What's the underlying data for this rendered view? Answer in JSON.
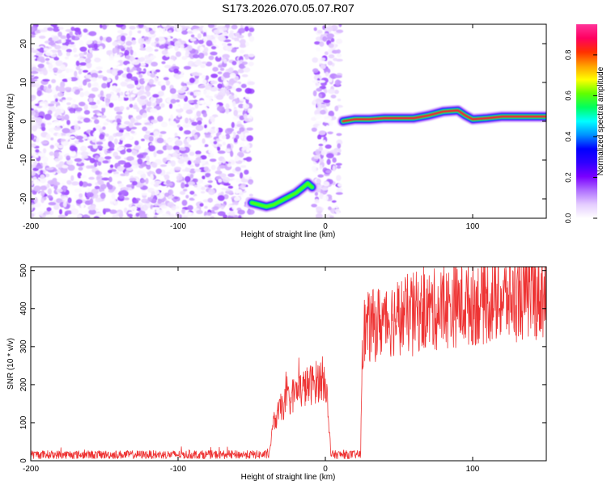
{
  "figure": {
    "title": "S173.2026.070.05.07.R07"
  },
  "chart_data": [
    {
      "type": "heatmap",
      "name": "spectrogram",
      "title": "S173.2026.070.05.07.R07",
      "xlabel": "Height of straight line (km)",
      "ylabel": "Frequency (Hz)",
      "xlim": [
        -200,
        150
      ],
      "ylim": [
        -25,
        25
      ],
      "xticks": [
        -200,
        -100,
        0,
        100
      ],
      "yticks": [
        -20,
        -10,
        0,
        10,
        20
      ],
      "xtick_labels": [
        "-200",
        "-100",
        "0",
        "100"
      ],
      "ytick_labels": [
        "-20",
        "-10",
        "0",
        "10",
        "20"
      ],
      "colorbar": {
        "label": "Normalized spectral amplitude",
        "range": [
          0.0,
          0.95
        ],
        "ticks": [
          0.0,
          0.2,
          0.4,
          0.6,
          0.8
        ],
        "tick_labels": [
          "0.0",
          "0.2",
          "0.4",
          "0.6",
          "0.8"
        ],
        "colors": [
          "#ffffff",
          "#e4ccff",
          "#b070ff",
          "#7a00ff",
          "#3000ff",
          "#0000ff",
          "#0090ff",
          "#00ffff",
          "#00ff60",
          "#60ff00",
          "#ffff00",
          "#ffa000",
          "#ff3000",
          "#ff0060",
          "#ff3399"
        ]
      },
      "noise_regions": [
        {
          "x_start": -200,
          "x_end": -50,
          "y_start": -25,
          "y_end": 25,
          "level": 0.1
        },
        {
          "x_start": -8,
          "x_end": 10,
          "y_start": -25,
          "y_end": 25,
          "level": 0.1
        }
      ],
      "ridge_segments": [
        {
          "x": [
            -50,
            -45,
            -40,
            -35,
            -30,
            -25,
            -20,
            -15,
            -12,
            -9
          ],
          "y": [
            -21,
            -21.5,
            -22,
            -21.5,
            -20.5,
            -19.5,
            -18.5,
            -17,
            -16,
            -17
          ],
          "level": 0.6
        },
        {
          "x": [
            12,
            20,
            30,
            40,
            50,
            60,
            70,
            80,
            90,
            95,
            100,
            110,
            120,
            130,
            140,
            150
          ],
          "y": [
            0,
            0.5,
            0.5,
            0.8,
            0.8,
            0.8,
            1.5,
            2.5,
            2.8,
            1.5,
            0.5,
            0.8,
            1.2,
            1.2,
            1.2,
            1.2
          ],
          "level": 0.85
        }
      ]
    },
    {
      "type": "line",
      "name": "snr",
      "title": "",
      "xlabel": "Height of straight line (km)",
      "ylabel": "SNR (10 * v/v)",
      "xlim": [
        -200,
        150
      ],
      "ylim": [
        0,
        510
      ],
      "xticks": [
        -200,
        -100,
        0,
        100
      ],
      "yticks": [
        0,
        100,
        200,
        300,
        400,
        500
      ],
      "xtick_labels": [
        "-200",
        "-100",
        "0",
        "100"
      ],
      "ytick_labels": [
        "0",
        "100",
        "200",
        "300",
        "400",
        "500"
      ],
      "series": [
        {
          "name": "SNR",
          "color": "#ee3333",
          "x": [
            -200,
            -150,
            -100,
            -50,
            -38,
            -35,
            -30,
            -25,
            -20,
            -15,
            -10,
            -5,
            0,
            1,
            2,
            3,
            4,
            5,
            10,
            15,
            20,
            22,
            24,
            25,
            26,
            30,
            40,
            50,
            60,
            70,
            80,
            90,
            100,
            110,
            120,
            130,
            140,
            150
          ],
          "y": [
            15,
            15,
            15,
            15,
            25,
            100,
            140,
            160,
            180,
            190,
            200,
            210,
            220,
            180,
            100,
            50,
            15,
            15,
            15,
            15,
            15,
            15,
            20,
            320,
            340,
            350,
            370,
            380,
            390,
            395,
            400,
            410,
            415,
            420,
            425,
            430,
            435,
            440
          ]
        }
      ]
    }
  ]
}
